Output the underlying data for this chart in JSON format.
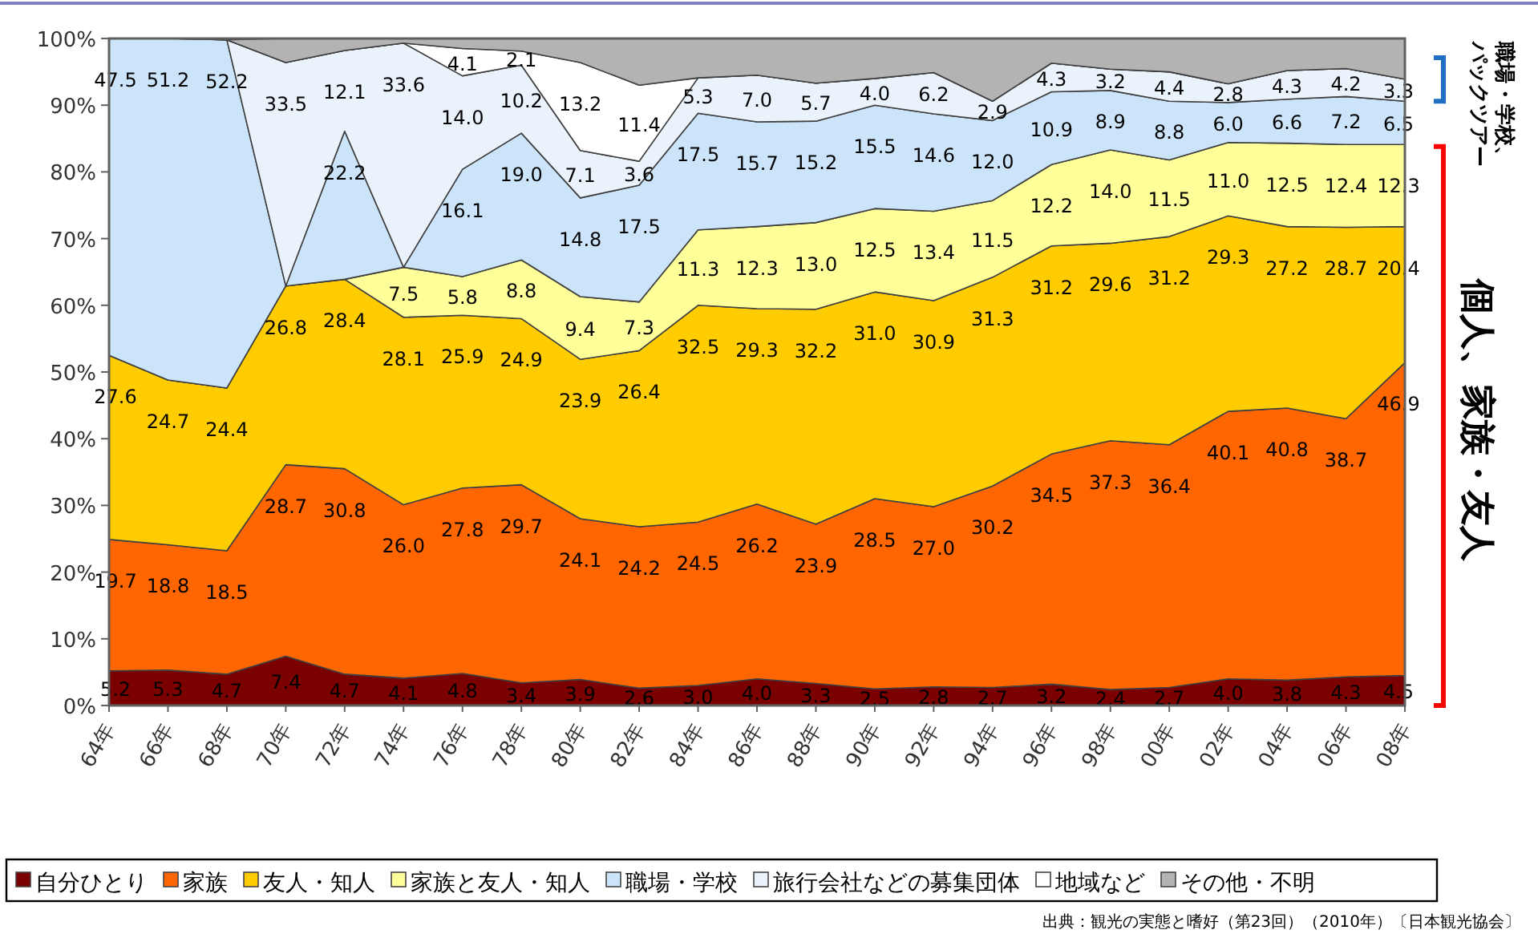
{
  "chart_data": {
    "type": "area",
    "stacked": true,
    "categories": [
      "64年",
      "66年",
      "68年",
      "70年",
      "72年",
      "74年",
      "76年",
      "78年",
      "80年",
      "82年",
      "84年",
      "86年",
      "88年",
      "90年",
      "92年",
      "94年",
      "96年",
      "98年",
      "00年",
      "02年",
      "04年",
      "06年",
      "08年"
    ],
    "series": [
      {
        "name": "自分ひとり",
        "color": "#7b0000",
        "values": [
          5.2,
          5.3,
          4.7,
          7.4,
          4.7,
          4.1,
          4.8,
          3.4,
          3.9,
          2.6,
          3.0,
          4.0,
          3.3,
          2.5,
          2.8,
          2.7,
          3.2,
          2.4,
          2.7,
          4.0,
          3.8,
          4.3,
          4.5
        ],
        "value_labels": [
          "5.2",
          "5.3",
          "4.7",
          "7.4",
          "4.7",
          "4.1",
          "4.8",
          "3.4",
          "3.9",
          "2.6",
          "3.0",
          "4.0",
          "3.3",
          "2.5",
          "2.8",
          "2.7",
          "3.2",
          "2.4",
          "2.7",
          "4.0",
          "3.8",
          "4.3",
          "4.5"
        ]
      },
      {
        "name": "家族",
        "color": "#ff6600",
        "values": [
          19.7,
          18.8,
          18.5,
          28.7,
          30.8,
          26.0,
          27.8,
          29.7,
          24.1,
          24.2,
          24.5,
          26.2,
          23.9,
          28.5,
          27.0,
          30.2,
          34.5,
          37.3,
          36.4,
          40.1,
          40.8,
          38.7,
          46.9
        ],
        "value_labels": [
          "19.7",
          "18.8",
          "18.5",
          "28.7",
          "30.8",
          "26.0",
          "27.8",
          "29.7",
          "24.1",
          "24.2",
          "24.5",
          "26.2",
          "23.9",
          "28.5",
          "27.0",
          "30.2",
          "34.5",
          "37.3",
          "36.4",
          "40.1",
          "40.8",
          "38.7",
          "46.9"
        ]
      },
      {
        "name": "友人・知人",
        "color": "#ffcc00",
        "values": [
          27.6,
          24.7,
          24.4,
          26.8,
          28.4,
          28.1,
          25.9,
          24.9,
          23.9,
          26.4,
          32.5,
          29.3,
          32.2,
          31.0,
          30.9,
          31.3,
          31.2,
          29.6,
          31.2,
          29.3,
          27.2,
          28.7,
          20.4
        ],
        "value_labels": [
          "27.6",
          "24.7",
          "24.4",
          "26.8",
          "28.4",
          "28.1",
          "25.9",
          "24.9",
          "23.9",
          "26.4",
          "32.5",
          "29.3",
          "32.2",
          "31.0",
          "30.9",
          "31.3",
          "31.2",
          "29.6",
          "31.2",
          "29.3",
          "27.2",
          "28.7",
          "20.4"
        ]
      },
      {
        "name": "家族と友人・知人",
        "color": "#ffff99",
        "values": [
          0,
          0,
          0,
          0,
          0,
          7.5,
          5.8,
          8.8,
          9.4,
          7.3,
          11.3,
          12.3,
          13.0,
          12.5,
          13.4,
          11.5,
          12.2,
          14.0,
          11.5,
          11.0,
          12.5,
          12.4,
          12.3
        ],
        "value_labels": [
          null,
          null,
          null,
          null,
          null,
          "7.5",
          "5.8",
          "8.8",
          "9.4",
          "7.3",
          "11.3",
          "12.3",
          "13.0",
          "12.5",
          "13.4",
          "11.5",
          "12.2",
          "14.0",
          "11.5",
          "11.0",
          "12.5",
          "12.4",
          "12.3"
        ]
      },
      {
        "name": "職場・学校",
        "color": "#cce4fa",
        "values": [
          47.5,
          51.2,
          52.2,
          0,
          22.2,
          0,
          16.1,
          19.0,
          14.8,
          17.5,
          17.5,
          15.7,
          15.2,
          15.5,
          14.6,
          12.0,
          10.9,
          8.9,
          8.8,
          6.0,
          6.6,
          7.2,
          6.5
        ],
        "value_labels": [
          "47.5",
          "51.2",
          "52.2",
          null,
          "22.2",
          null,
          "16.1",
          "19.0",
          "14.8",
          "17.5",
          "17.5",
          "15.7",
          "15.2",
          "15.5",
          "14.6",
          "12.0",
          "10.9",
          "8.9",
          "8.8",
          "6.0",
          "6.6",
          "7.2",
          "6.5"
        ]
      },
      {
        "name": "旅行会社などの募集団体",
        "color": "#eaf2fb",
        "values": [
          0,
          0,
          0,
          33.5,
          12.1,
          33.6,
          14.0,
          10.2,
          7.1,
          3.6,
          5.3,
          7.0,
          5.7,
          4.0,
          6.2,
          2.9,
          4.3,
          3.2,
          4.4,
          2.8,
          4.3,
          4.2,
          3.3
        ],
        "value_labels": [
          null,
          null,
          null,
          "33.5",
          "12.1",
          "33.6",
          "14.0",
          "10.2",
          "7.1",
          "3.6",
          "5.3",
          "7.0",
          "5.7",
          "4.0",
          "6.2",
          "2.9",
          "4.3",
          "3.2",
          "4.4",
          "2.8",
          "4.3",
          "4.2",
          "3.3"
        ]
      },
      {
        "name": "地域など",
        "color": "#ffffff",
        "values": [
          0,
          0,
          0,
          0,
          0,
          0,
          4.1,
          2.1,
          13.2,
          11.4,
          0,
          0,
          0,
          0,
          0,
          0,
          0,
          0,
          0,
          0,
          0,
          0,
          0
        ],
        "value_labels": [
          null,
          null,
          null,
          null,
          null,
          null,
          "4.1",
          "2.1",
          "13.2",
          "11.4",
          null,
          null,
          null,
          null,
          null,
          null,
          null,
          null,
          null,
          null,
          null,
          null,
          null
        ]
      },
      {
        "name": "その他・不明",
        "color": "#b3b3b3",
        "values": [
          0,
          0,
          0,
          3.6,
          1.8,
          0.7,
          1.5,
          1.9,
          3.6,
          7.0,
          5.9,
          5.5,
          6.7,
          6.0,
          5.1,
          9.4,
          3.7,
          4.6,
          5.0,
          6.8,
          4.8,
          4.5,
          6.1
        ]
      }
    ],
    "ylim": [
      0,
      100
    ],
    "yticks": [
      {
        "value": 0,
        "label": "0%"
      },
      {
        "value": 10,
        "label": "10%"
      },
      {
        "value": 20,
        "label": "20%"
      },
      {
        "value": 30,
        "label": "30%"
      },
      {
        "value": 40,
        "label": "40%"
      },
      {
        "value": 50,
        "label": "50%"
      },
      {
        "value": 60,
        "label": "60%"
      },
      {
        "value": 70,
        "label": "70%"
      },
      {
        "value": 80,
        "label": "80%"
      },
      {
        "value": 90,
        "label": "90%"
      },
      {
        "value": 100,
        "label": "100%"
      }
    ],
    "legend": "bottom",
    "annotations": [
      "職場・学校、",
      "パックツアー",
      "個人、家族・友人",
      "出典：観光の実態と嗜好（第23回）（2010年）〔日本観光協会〕"
    ]
  }
}
